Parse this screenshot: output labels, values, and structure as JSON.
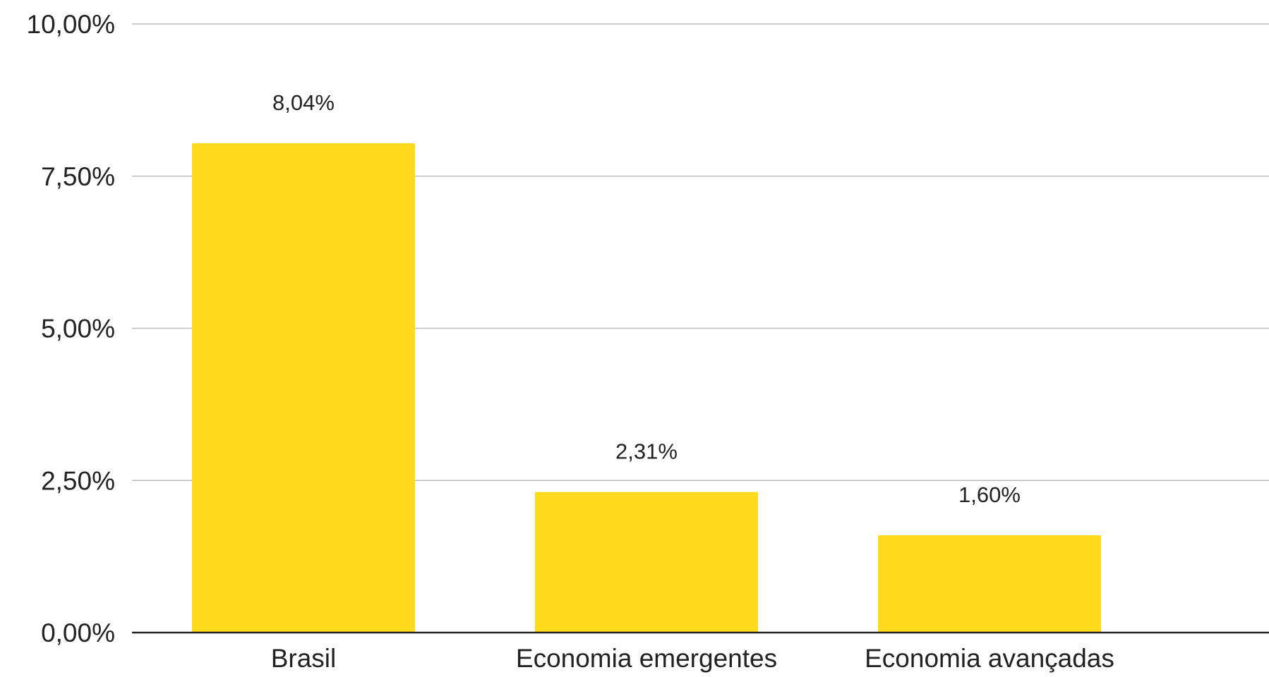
{
  "chart_data": {
    "type": "bar",
    "categories": [
      "Brasil",
      "Economia emergentes",
      "Economia avançadas"
    ],
    "values": [
      8.04,
      2.31,
      1.6
    ],
    "data_labels": [
      "8,04%",
      "2,31%",
      "1,60%"
    ],
    "y_ticks": [
      0,
      2.5,
      5,
      7.5,
      10
    ],
    "y_tick_labels": [
      "0,00%",
      "2,50%",
      "5,00%",
      "7,50%",
      "10,00%"
    ],
    "ylim": [
      0,
      10
    ],
    "grid": true,
    "legend": "none",
    "title": "",
    "xlabel": "",
    "ylabel": "",
    "bar_color": "#FFD91C"
  }
}
